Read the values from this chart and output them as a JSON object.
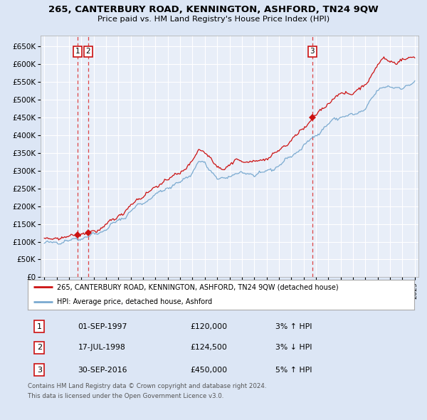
{
  "title": "265, CANTERBURY ROAD, KENNINGTON, ASHFORD, TN24 9QW",
  "subtitle": "Price paid vs. HM Land Registry's House Price Index (HPI)",
  "legend_line1": "265, CANTERBURY ROAD, KENNINGTON, ASHFORD, TN24 9QW (detached house)",
  "legend_line2": "HPI: Average price, detached house, Ashford",
  "footer1": "Contains HM Land Registry data © Crown copyright and database right 2024.",
  "footer2": "This data is licensed under the Open Government Licence v3.0.",
  "transactions": [
    {
      "num": 1,
      "date": "1997-09-01",
      "price": 120000,
      "hpi_pct": "3%",
      "dir": "↑"
    },
    {
      "num": 2,
      "date": "1998-07-17",
      "price": 124500,
      "hpi_pct": "3%",
      "dir": "↓"
    },
    {
      "num": 3,
      "date": "2016-09-30",
      "price": 450000,
      "hpi_pct": "5%",
      "dir": "↑"
    }
  ],
  "date_strs": [
    "01-SEP-1997",
    "17-JUL-1998",
    "30-SEP-2016"
  ],
  "price_strs": [
    "£120,000",
    "£124,500",
    "£450,000"
  ],
  "hpi_strs": [
    "3% ↑ HPI",
    "3% ↓ HPI",
    "5% ↑ HPI"
  ],
  "hpi_color": "#7aaad0",
  "price_color": "#cc1111",
  "marker_color": "#cc1111",
  "dashed_line_color": "#dd3333",
  "fig_bg_color": "#dce6f5",
  "plot_bg": "#e8eef8",
  "grid_color": "#ffffff",
  "y_ticks": [
    0,
    50000,
    100000,
    150000,
    200000,
    250000,
    300000,
    350000,
    400000,
    450000,
    500000,
    550000,
    600000,
    650000
  ],
  "y_labels": [
    "£0",
    "£50K",
    "£100K",
    "£150K",
    "£200K",
    "£250K",
    "£300K",
    "£350K",
    "£400K",
    "£450K",
    "£500K",
    "£550K",
    "£600K",
    "£650K"
  ],
  "x_start_year": 1995,
  "x_end_year": 2025,
  "hpi_anchors": {
    "1995.0": 95000,
    "1996.0": 98000,
    "1997.0": 103000,
    "1997.75": 108000,
    "1998.5": 115000,
    "1999.5": 125000,
    "2000.5": 148000,
    "2001.5": 170000,
    "2002.5": 200000,
    "2003.5": 220000,
    "2004.5": 242000,
    "2005.0": 252000,
    "2006.0": 267000,
    "2007.0": 295000,
    "2007.5": 325000,
    "2008.0": 320000,
    "2008.5": 300000,
    "2009.0": 278000,
    "2009.5": 275000,
    "2010.0": 283000,
    "2010.5": 295000,
    "2011.0": 292000,
    "2011.5": 290000,
    "2012.0": 290000,
    "2012.5": 292000,
    "2013.0": 297000,
    "2013.5": 305000,
    "2014.0": 315000,
    "2014.5": 328000,
    "2015.0": 340000,
    "2015.5": 355000,
    "2016.0": 368000,
    "2016.5": 385000,
    "2016.75": 395000,
    "2017.0": 400000,
    "2017.5": 415000,
    "2018.0": 430000,
    "2018.5": 445000,
    "2019.0": 452000,
    "2019.5": 455000,
    "2020.0": 455000,
    "2020.5": 465000,
    "2021.0": 475000,
    "2021.5": 500000,
    "2022.0": 525000,
    "2022.5": 540000,
    "2023.0": 535000,
    "2023.5": 530000,
    "2024.0": 535000,
    "2024.5": 542000,
    "2025.0": 548000
  }
}
